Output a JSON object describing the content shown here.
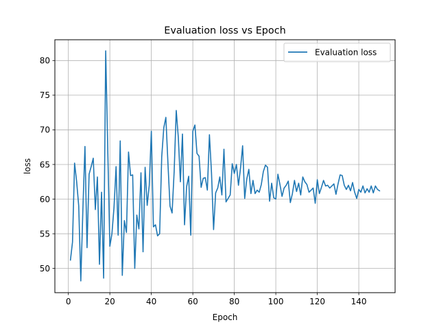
{
  "chart_data": {
    "type": "line",
    "title": "Evaluation loss vs Epoch",
    "xlabel": "Epoch",
    "ylabel": "loss",
    "xlim": [
      -6.5,
      157.5
    ],
    "ylim": [
      46.5,
      83.0
    ],
    "xticks": [
      0,
      20,
      40,
      60,
      80,
      100,
      120,
      140
    ],
    "yticks": [
      50,
      55,
      60,
      65,
      70,
      75,
      80
    ],
    "grid": true,
    "legend": "top-right",
    "series": [
      {
        "name": "Evaluation loss",
        "color": "#1f77b4",
        "x": [
          1,
          2,
          3,
          4,
          5,
          6,
          7,
          8,
          9,
          10,
          11,
          12,
          13,
          14,
          15,
          16,
          17,
          18,
          19,
          20,
          21,
          22,
          23,
          24,
          25,
          26,
          27,
          28,
          29,
          30,
          31,
          32,
          33,
          34,
          35,
          36,
          37,
          38,
          39,
          40,
          41,
          42,
          43,
          44,
          45,
          46,
          47,
          48,
          49,
          50,
          51,
          52,
          53,
          54,
          55,
          56,
          57,
          58,
          59,
          60,
          61,
          62,
          63,
          64,
          65,
          66,
          67,
          68,
          69,
          70,
          71,
          72,
          73,
          74,
          75,
          76,
          77,
          78,
          79,
          80,
          81,
          82,
          83,
          84,
          85,
          86,
          87,
          88,
          89,
          90,
          91,
          92,
          93,
          94,
          95,
          96,
          97,
          98,
          99,
          100,
          101,
          102,
          103,
          104,
          105,
          106,
          107,
          108,
          109,
          110,
          111,
          112,
          113,
          114,
          115,
          116,
          117,
          118,
          119,
          120,
          121,
          122,
          123,
          124,
          125,
          126,
          127,
          128,
          129,
          130,
          131,
          132,
          133,
          134,
          135,
          136,
          137,
          138,
          139,
          140,
          141,
          142,
          143,
          144,
          145,
          146,
          147,
          148,
          149,
          150
        ],
        "values": [
          51.2,
          53.8,
          65.2,
          62.5,
          59.0,
          48.2,
          58.5,
          67.6,
          53.0,
          63.6,
          64.7,
          65.9,
          58.5,
          63.2,
          50.6,
          61.0,
          48.6,
          81.4,
          67.0,
          53.2,
          55.0,
          58.8,
          64.7,
          54.8,
          68.4,
          49.0,
          56.9,
          55.2,
          66.8,
          63.4,
          63.5,
          50.0,
          57.7,
          55.7,
          63.8,
          52.4,
          64.6,
          59.1,
          62.0,
          69.8,
          56.0,
          56.3,
          54.7,
          55.0,
          66.1,
          70.3,
          71.8,
          65.2,
          59.0,
          58.0,
          64.0,
          72.8,
          68.9,
          62.5,
          69.4,
          56.3,
          61.8,
          63.3,
          54.8,
          69.8,
          70.7,
          66.6,
          66.2,
          61.7,
          63.0,
          63.1,
          61.3,
          69.3,
          63.8,
          55.6,
          60.9,
          61.6,
          63.2,
          60.6,
          67.2,
          59.6,
          60.1,
          60.6,
          65.1,
          63.7,
          65.0,
          62.0,
          64.5,
          67.7,
          60.1,
          62.9,
          64.3,
          60.8,
          62.7,
          60.8,
          61.3,
          61.0,
          62.1,
          64.0,
          64.9,
          64.6,
          59.7,
          62.3,
          60.2,
          60.0,
          63.6,
          62.1,
          60.4,
          61.6,
          62.0,
          62.6,
          59.5,
          60.8,
          62.7,
          61.1,
          62.3,
          60.6,
          63.2,
          62.5,
          62.1,
          61.0,
          61.3,
          61.6,
          59.4,
          62.8,
          60.8,
          61.7,
          62.7,
          61.9,
          62.0,
          61.6,
          61.9,
          62.2,
          60.7,
          62.2,
          63.5,
          63.4,
          62.0,
          61.4,
          62.0,
          61.2,
          62.4,
          61.0,
          60.1,
          61.4,
          61.0,
          61.9,
          60.9,
          61.5,
          61.0,
          61.9,
          60.9,
          61.9,
          61.4,
          61.2
        ]
      }
    ]
  }
}
